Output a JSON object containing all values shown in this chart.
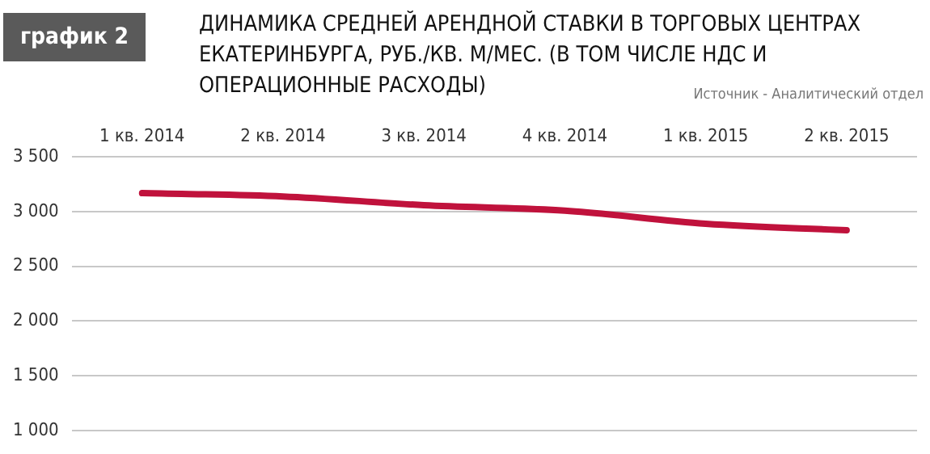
{
  "chart_data": {
    "type": "line",
    "title": "ДИНАМИКА СРЕДНЕЙ АРЕНДНОЙ СТАВКИ В ТОРГОВЫХ ЦЕНТРАХ ЕКАТЕРИНБУРГА, РУБ./КВ. М/МЕС. (В ТОМ ЧИСЛЕ НДС И ОПЕРАЦИОННЫЕ РАСХОДЫ)",
    "annotations": [
      "график 2",
      "Источник - Аналитический отдел"
    ],
    "categories": [
      "1 кв. 2014",
      "2 кв. 2014",
      "3 кв. 2014",
      "4 кв. 2014",
      "1 кв. 2015",
      "2 кв. 2015"
    ],
    "series": [
      {
        "color": "#c0123c",
        "values": [
          3170,
          3140,
          3060,
          3010,
          2890,
          2830
        ]
      }
    ],
    "ylim": [
      1000,
      3500
    ],
    "yticks": [
      {
        "value": 1000,
        "label": "1 000"
      },
      {
        "value": 1500,
        "label": "1 500"
      },
      {
        "value": 2000,
        "label": "2 000"
      },
      {
        "value": 2500,
        "label": "2 500"
      },
      {
        "value": 3000,
        "label": "3 000"
      },
      {
        "value": 3500,
        "label": "3 500"
      }
    ],
    "grid": "y",
    "legend": false,
    "marker": "none",
    "line_style": "solid"
  }
}
